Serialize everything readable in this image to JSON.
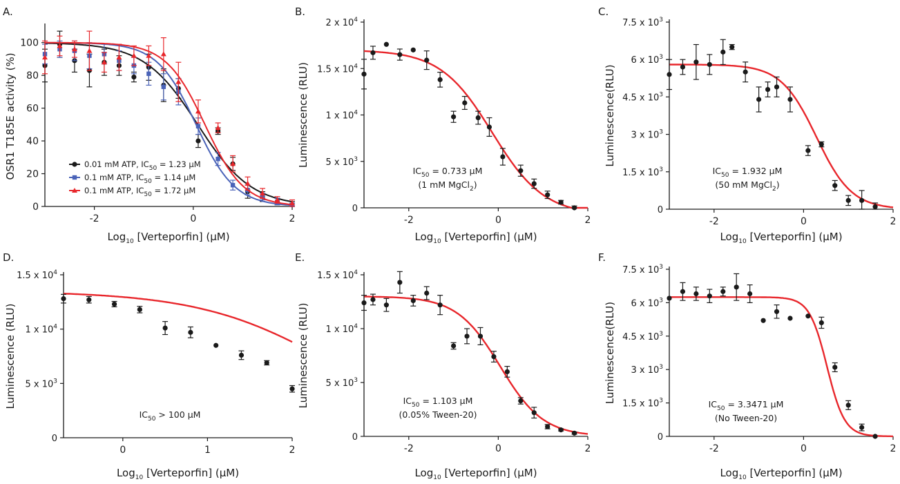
{
  "chart_data": [
    {
      "panel": "A.",
      "type": "scatter",
      "xlabel": "Log",
      "xlabel_sub": "10",
      "xlabel_rest": " [Verteporfin] (μM)",
      "ylabel": "OSR1 T185E activity (%)",
      "xlim": [
        -3,
        2
      ],
      "ylim": [
        0,
        110
      ],
      "xticks": [
        -2,
        0,
        2
      ],
      "xtick_labels": [
        "-2",
        "0",
        "2"
      ],
      "yticks": [
        0,
        20,
        40,
        60,
        80,
        100
      ],
      "ytick_labels": [
        "0",
        "20",
        "40",
        "60",
        "80",
        "100"
      ],
      "series": [
        {
          "name": "0.01 mM ATP, IC50 = 1.23 μM",
          "legend": [
            "0.01 mM ATP, IC",
            "50",
            " = 1.23 μM"
          ],
          "color": "#1a1a1a",
          "marker": "circle",
          "x": [
            -3.0,
            -2.7,
            -2.4,
            -2.1,
            -1.8,
            -1.5,
            -1.2,
            -0.9,
            -0.6,
            -0.3,
            0.1,
            0.5,
            0.8,
            1.1,
            1.4,
            1.7,
            2.0
          ],
          "y": [
            86,
            99,
            89,
            83,
            88,
            86,
            79,
            85,
            74,
            72,
            40,
            46,
            26,
            9,
            6,
            3,
            1
          ],
          "err": [
            10,
            8,
            7,
            10,
            8,
            6,
            3,
            8,
            10,
            6,
            4,
            2,
            4,
            4,
            3,
            2,
            2
          ],
          "fit": {
            "top": 100,
            "bottom": 0,
            "logic50": 0.0899,
            "hill": -0.8
          }
        },
        {
          "name": "0.1 mM ATP, IC50 = 1.14 μM",
          "legend": [
            "0.1 mM ATP, IC",
            "50",
            " = 1.14 μM"
          ],
          "color": "#4a63b8",
          "marker": "square",
          "x": [
            -3.0,
            -2.7,
            -2.4,
            -2.1,
            -1.8,
            -1.5,
            -1.2,
            -0.9,
            -0.6,
            -0.3,
            0.1,
            0.5,
            0.8,
            1.1,
            1.4,
            1.7,
            2.0
          ],
          "y": [
            93,
            96,
            95,
            92,
            93,
            89,
            86,
            81,
            73,
            70,
            49,
            29,
            13,
            10,
            6,
            3,
            1
          ],
          "err": [
            6,
            5,
            6,
            8,
            6,
            6,
            5,
            7,
            8,
            8,
            5,
            4,
            3,
            3,
            2,
            2,
            1
          ],
          "fit": {
            "top": 100,
            "bottom": 0,
            "logic50": 0.0569,
            "hill": -1.1
          }
        },
        {
          "name": "0.1 mM ATP, IC50 = 1.72 μM",
          "legend": [
            "0.1 mM ATP, IC",
            "50",
            " = 1.72 μM"
          ],
          "color": "#e8262b",
          "marker": "triangle",
          "x": [
            -3.0,
            -2.7,
            -2.4,
            -2.1,
            -1.8,
            -1.5,
            -1.2,
            -0.9,
            -0.6,
            -0.3,
            0.1,
            0.5,
            0.8,
            1.1,
            1.4,
            1.7,
            2.0
          ],
          "y": [
            91,
            98,
            96,
            95,
            88,
            91,
            92,
            92,
            93,
            76,
            58,
            48,
            26,
            14,
            8,
            4,
            2
          ],
          "err": [
            10,
            6,
            5,
            12,
            6,
            8,
            6,
            6,
            10,
            12,
            7,
            3,
            5,
            4,
            3,
            2,
            2
          ],
          "fit": {
            "top": 100,
            "bottom": 0,
            "logic50": 0.2355,
            "hill": -1.1
          }
        }
      ],
      "legend_position": "lower-left"
    },
    {
      "panel": "B.",
      "type": "scatter",
      "xlabel": "Log",
      "xlabel_sub": "10",
      "xlabel_rest": " [Verteporfin] (μM)",
      "ylabel": "Luminescence (RLU)",
      "xlim": [
        -3,
        2
      ],
      "ylim": [
        0,
        20000
      ],
      "xticks": [
        -2,
        0,
        2
      ],
      "xtick_labels": [
        "-2",
        "0",
        "2"
      ],
      "yticks": [
        0,
        5000,
        10000,
        15000,
        20000
      ],
      "ytick_labels": [
        [
          "0",
          ""
        ],
        [
          "5 x 10",
          "3"
        ],
        [
          "1 x 10",
          "4"
        ],
        [
          "1.5 x 10",
          "4"
        ],
        [
          "2 x 10",
          "4"
        ]
      ],
      "annotation": [
        [
          "IC",
          "50",
          " = 0.733 μM"
        ],
        [
          "(1 mM MgCl",
          "2",
          ")"
        ]
      ],
      "series": [
        {
          "color": "#1a1a1a",
          "marker": "circle",
          "x": [
            -3.0,
            -2.8,
            -2.5,
            -2.2,
            -1.9,
            -1.6,
            -1.3,
            -1.0,
            -0.75,
            -0.45,
            -0.2,
            0.1,
            0.5,
            0.8,
            1.1,
            1.4,
            1.7
          ],
          "y": [
            14400,
            16700,
            17600,
            16500,
            17000,
            15900,
            13800,
            9800,
            11300,
            9700,
            8700,
            5500,
            4000,
            2600,
            1400,
            600,
            0
          ],
          "err": [
            1600,
            700,
            0,
            600,
            0,
            1000,
            800,
            600,
            700,
            700,
            1000,
            900,
            600,
            500,
            400,
            200,
            200
          ],
          "fit": {
            "top": 17000,
            "bottom": -800,
            "logic50": -0.135,
            "hill": -0.75
          }
        }
      ]
    },
    {
      "panel": "C.",
      "type": "scatter",
      "xlabel": "Log",
      "xlabel_sub": "10",
      "xlabel_rest": " [Verteporfin] (μM)",
      "ylabel": "Luminescence(RLU)",
      "xlim": [
        -3,
        2
      ],
      "ylim": [
        0,
        7500
      ],
      "xticks": [
        -2,
        0,
        2
      ],
      "xtick_labels": [
        "-2",
        "0",
        "2"
      ],
      "yticks": [
        0,
        1500,
        3000,
        4500,
        6000,
        7500
      ],
      "ytick_labels": [
        [
          "0",
          ""
        ],
        [
          "1.5 x 10",
          "3"
        ],
        [
          "3 x 10",
          "3"
        ],
        [
          "4.5 x 10",
          "3"
        ],
        [
          "6 x 10",
          "3"
        ],
        [
          "7.5 x 10",
          "3"
        ]
      ],
      "annotation": [
        [
          "IC",
          "50",
          " = 1.932 μM"
        ],
        [
          "(50 mM MgCl",
          "2",
          ")"
        ]
      ],
      "series": [
        {
          "color": "#1a1a1a",
          "marker": "circle",
          "x": [
            -3.0,
            -2.7,
            -2.4,
            -2.1,
            -1.8,
            -1.6,
            -1.3,
            -1.0,
            -0.8,
            -0.6,
            -0.3,
            0.1,
            0.4,
            0.7,
            1.0,
            1.3,
            1.6
          ],
          "y": [
            5400,
            5700,
            5900,
            5800,
            6300,
            6500,
            5500,
            4400,
            4800,
            4900,
            4400,
            2350,
            2600,
            950,
            350,
            350,
            100
          ],
          "err": [
            600,
            300,
            700,
            400,
            500,
            100,
            400,
            500,
            300,
            400,
            500,
            200,
            100,
            200,
            200,
            400,
            150
          ],
          "fit": {
            "top": 5800,
            "bottom": 0,
            "logic50": 0.286,
            "hill": -1.1
          }
        }
      ]
    },
    {
      "panel": "D.",
      "type": "scatter",
      "xlabel": "Log",
      "xlabel_sub": "10",
      "xlabel_rest": " [Verteporfin] (μM)",
      "ylabel": "Luminescence (RLU)",
      "xlim": [
        -0.7,
        2
      ],
      "ylim": [
        0,
        15000
      ],
      "xticks": [
        0,
        1,
        2
      ],
      "xtick_labels": [
        "0",
        "1",
        "2"
      ],
      "yticks": [
        0,
        5000,
        10000,
        15000
      ],
      "ytick_labels": [
        [
          "0",
          ""
        ],
        [
          "5 x 10",
          "3"
        ],
        [
          "1 x 10",
          "4"
        ],
        [
          "1.5 x 10",
          "4"
        ]
      ],
      "annotation": [
        [
          "IC",
          "50",
          " > 100 μM"
        ]
      ],
      "series": [
        {
          "color": "#1a1a1a",
          "marker": "circle",
          "x": [
            -0.7,
            -0.4,
            -0.1,
            0.2,
            0.5,
            0.8,
            1.1,
            1.4,
            1.7,
            2.0
          ],
          "y": [
            12800,
            12700,
            12300,
            11800,
            10100,
            9700,
            8500,
            7600,
            6900,
            4500
          ],
          "err": [
            400,
            300,
            250,
            300,
            600,
            500,
            0,
            400,
            200,
            300
          ],
          "fit": {
            "top": 13500,
            "bottom": 0,
            "logic50": 2.5,
            "hill": -0.55
          }
        }
      ]
    },
    {
      "panel": "E.",
      "type": "scatter",
      "xlabel": "Log",
      "xlabel_sub": "10",
      "xlabel_rest": " [Verteporfin] (μM)",
      "ylabel": "Luminescence (RLU)",
      "xlim": [
        -3,
        2
      ],
      "ylim": [
        0,
        15000
      ],
      "xticks": [
        -2,
        0,
        2
      ],
      "xtick_labels": [
        "-2",
        "0",
        "2"
      ],
      "yticks": [
        0,
        5000,
        10000,
        15000
      ],
      "ytick_labels": [
        [
          "0",
          ""
        ],
        [
          "5 x 10",
          "3"
        ],
        [
          "1 x 10",
          "4"
        ],
        [
          "1.5 x 10",
          "4"
        ]
      ],
      "annotation": [
        [
          "IC",
          "50",
          " = 1.103 μM"
        ],
        [
          "(0.05% Tween-20)"
        ]
      ],
      "series": [
        {
          "color": "#1a1a1a",
          "marker": "circle",
          "x": [
            -3.0,
            -2.8,
            -2.5,
            -2.2,
            -1.9,
            -1.6,
            -1.3,
            -1.0,
            -0.7,
            -0.4,
            -0.1,
            0.2,
            0.5,
            0.8,
            1.1,
            1.4,
            1.7
          ],
          "y": [
            12400,
            12700,
            12200,
            14300,
            12600,
            13300,
            12200,
            8400,
            9300,
            9300,
            7400,
            6000,
            3300,
            2200,
            900,
            600,
            300
          ],
          "err": [
            700,
            500,
            600,
            1000,
            500,
            600,
            900,
            300,
            700,
            800,
            500,
            500,
            300,
            500,
            200,
            100,
            100
          ],
          "fit": {
            "top": 13000,
            "bottom": 0,
            "logic50": 0.0426,
            "hill": -0.9
          }
        }
      ]
    },
    {
      "panel": "F.",
      "type": "scatter",
      "xlabel": "Log",
      "xlabel_sub": "10",
      "xlabel_rest": " [Verteporfin] (μM)",
      "ylabel": "Luminescence(RLU)",
      "xlim": [
        -3,
        2
      ],
      "ylim": [
        0,
        7500
      ],
      "xticks": [
        -2,
        0,
        2
      ],
      "xtick_labels": [
        "-2",
        "0",
        "2"
      ],
      "yticks": [
        0,
        1500,
        3000,
        4500,
        6000,
        7500
      ],
      "ytick_labels": [
        [
          "0",
          ""
        ],
        [
          "1.5 x 10",
          "3"
        ],
        [
          "3 x 10",
          "3"
        ],
        [
          "4.5 x 10",
          "3"
        ],
        [
          "6 x 10",
          "3"
        ],
        [
          "7.5 x 10",
          "3"
        ]
      ],
      "annotation": [
        [
          "IC",
          "50",
          " = 3.3471 μM"
        ],
        [
          "(No Tween-20)"
        ]
      ],
      "series": [
        {
          "color": "#1a1a1a",
          "marker": "circle",
          "x": [
            -3.0,
            -2.7,
            -2.4,
            -2.1,
            -1.8,
            -1.5,
            -1.2,
            -0.9,
            -0.6,
            -0.3,
            0.1,
            0.4,
            0.7,
            1.0,
            1.3,
            1.6
          ],
          "y": [
            6200,
            6500,
            6400,
            6300,
            6500,
            6700,
            6400,
            5200,
            5600,
            5300,
            5400,
            5100,
            3100,
            1400,
            400,
            0
          ],
          "err": [
            0,
            400,
            300,
            300,
            200,
            600,
            400,
            0,
            300,
            0,
            0,
            250,
            200,
            200,
            150,
            0
          ],
          "fit": {
            "top": 6250,
            "bottom": 0,
            "logic50": 0.5246,
            "hill": -2.2
          }
        }
      ]
    }
  ]
}
